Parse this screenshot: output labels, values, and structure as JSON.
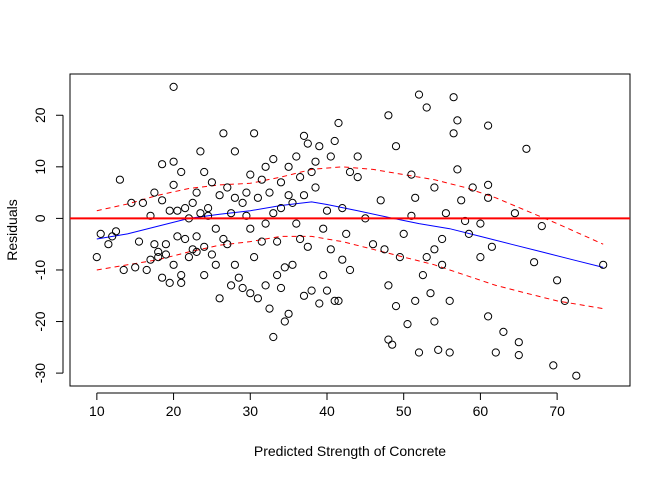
{
  "chart_data": {
    "type": "scatter",
    "title": "",
    "xlabel": "Predicted Strength of Concrete",
    "ylabel": "Residuals",
    "xlim": [
      6.5,
      79.5
    ],
    "ylim": [
      -32.5,
      28
    ],
    "x_ticks": [
      10,
      20,
      30,
      40,
      50,
      60,
      70
    ],
    "y_ticks": [
      -30,
      -20,
      -10,
      0,
      10,
      20
    ],
    "grid": false,
    "colors": {
      "points": "#000000",
      "zero_line": "#ff0000",
      "smooth": "#0000ff",
      "bands": "#ff0000"
    },
    "zero_line": {
      "y": 0
    },
    "smooth": {
      "name": "",
      "x": [
        10,
        14,
        18,
        22,
        26,
        30,
        34,
        38,
        40,
        44,
        48,
        52,
        56,
        60,
        64,
        68,
        72,
        76
      ],
      "y": [
        -4,
        -3,
        -1.5,
        0,
        0.8,
        1.5,
        2.5,
        3.2,
        2.7,
        1.5,
        0.2,
        -1,
        -2,
        -3.5,
        -5,
        -6.5,
        -8,
        -9.5
      ]
    },
    "upper_band": {
      "x": [
        10,
        14,
        18,
        22,
        26,
        30,
        34,
        38,
        42,
        46,
        50,
        54,
        58,
        62,
        66,
        70,
        76
      ],
      "y": [
        1.5,
        2.8,
        4.5,
        5.8,
        6.5,
        6.8,
        8,
        9.5,
        10,
        9.5,
        8.5,
        7.5,
        6,
        4,
        1.5,
        -1,
        -5
      ]
    },
    "lower_band": {
      "x": [
        10,
        14,
        18,
        22,
        26,
        30,
        34,
        38,
        42,
        46,
        50,
        54,
        58,
        62,
        66,
        70,
        76
      ],
      "y": [
        -10,
        -9,
        -8,
        -6.5,
        -5.2,
        -4.5,
        -3.5,
        -3.5,
        -4.5,
        -6,
        -7.5,
        -9,
        -11,
        -13,
        -14.5,
        -16,
        -17.5
      ]
    },
    "points": [
      [
        10,
        -7.5
      ],
      [
        10.5,
        -3
      ],
      [
        11.5,
        -5
      ],
      [
        12,
        -3.5
      ],
      [
        12.5,
        -2.5
      ],
      [
        13,
        7.5
      ],
      [
        13.5,
        -10
      ],
      [
        14.5,
        3
      ],
      [
        15,
        -9.5
      ],
      [
        15.5,
        -4.5
      ],
      [
        16,
        3
      ],
      [
        16.5,
        -10
      ],
      [
        17,
        0.5
      ],
      [
        17,
        -8
      ],
      [
        17.5,
        5
      ],
      [
        17.5,
        -5
      ],
      [
        18,
        -6.5
      ],
      [
        18,
        -7.5
      ],
      [
        18.5,
        10.5
      ],
      [
        18.5,
        3.5
      ],
      [
        18.5,
        -11.5
      ],
      [
        19,
        -5
      ],
      [
        19,
        -7
      ],
      [
        19.5,
        1.5
      ],
      [
        19.5,
        -12.5
      ],
      [
        20,
        11
      ],
      [
        20,
        6.5
      ],
      [
        20,
        25.5
      ],
      [
        20,
        -9
      ],
      [
        20.5,
        -3.5
      ],
      [
        20.5,
        1.5
      ],
      [
        21,
        -11
      ],
      [
        21,
        -12.5
      ],
      [
        21,
        9
      ],
      [
        21.5,
        -4
      ],
      [
        21.5,
        2
      ],
      [
        22,
        -7.5
      ],
      [
        22,
        0
      ],
      [
        22.5,
        -6
      ],
      [
        22.5,
        3
      ],
      [
        23,
        -6.5
      ],
      [
        23,
        -3.5
      ],
      [
        23,
        5
      ],
      [
        23.5,
        13
      ],
      [
        23.5,
        1
      ],
      [
        24,
        -5.5
      ],
      [
        24,
        -11
      ],
      [
        24,
        9
      ],
      [
        24.5,
        2
      ],
      [
        24.5,
        0.5
      ],
      [
        25,
        -7
      ],
      [
        25,
        7
      ],
      [
        25.5,
        -9
      ],
      [
        25.5,
        -2
      ],
      [
        26,
        -15.5
      ],
      [
        26,
        4.5
      ],
      [
        26.5,
        16.5
      ],
      [
        26.5,
        -4
      ],
      [
        27,
        6
      ],
      [
        27,
        -5
      ],
      [
        27.5,
        1
      ],
      [
        27.5,
        -13
      ],
      [
        28,
        4
      ],
      [
        28,
        -9
      ],
      [
        28,
        13
      ],
      [
        28.5,
        -11.5
      ],
      [
        29,
        3
      ],
      [
        29,
        -13.5
      ],
      [
        29.5,
        5
      ],
      [
        29.5,
        0.5
      ],
      [
        30,
        -14.5
      ],
      [
        30,
        8.5
      ],
      [
        30,
        -2
      ],
      [
        30.5,
        16.5
      ],
      [
        30.5,
        -7.5
      ],
      [
        31,
        -15.5
      ],
      [
        31,
        4
      ],
      [
        31.5,
        -4.5
      ],
      [
        31.5,
        7.5
      ],
      [
        32,
        -1
      ],
      [
        32,
        -13
      ],
      [
        32,
        10
      ],
      [
        32.5,
        -17.5
      ],
      [
        32.5,
        5
      ],
      [
        33,
        -23
      ],
      [
        33,
        11.5
      ],
      [
        33,
        1
      ],
      [
        33.5,
        -11
      ],
      [
        33.5,
        -4.5
      ],
      [
        34,
        -13.5
      ],
      [
        34,
        7
      ],
      [
        34,
        2
      ],
      [
        34.5,
        -9.5
      ],
      [
        34.5,
        -20
      ],
      [
        35,
        -18.5
      ],
      [
        35,
        10
      ],
      [
        35,
        4.5
      ],
      [
        35.5,
        -9
      ],
      [
        35.5,
        3
      ],
      [
        36,
        12
      ],
      [
        36,
        -1
      ],
      [
        36.5,
        8
      ],
      [
        36.5,
        -4
      ],
      [
        37,
        16
      ],
      [
        37,
        -15
      ],
      [
        37,
        4.5
      ],
      [
        37.5,
        14.5
      ],
      [
        37.5,
        -5.5
      ],
      [
        38,
        9
      ],
      [
        38,
        -14
      ],
      [
        38.5,
        11
      ],
      [
        38.5,
        6
      ],
      [
        39,
        -16.5
      ],
      [
        39,
        14
      ],
      [
        39.5,
        -2
      ],
      [
        39.5,
        -11
      ],
      [
        40,
        -14
      ],
      [
        40,
        1.5
      ],
      [
        40.5,
        12
      ],
      [
        40.5,
        -6
      ],
      [
        41,
        -16
      ],
      [
        41,
        15
      ],
      [
        41.5,
        18.5
      ],
      [
        41.5,
        -16
      ],
      [
        42,
        2
      ],
      [
        42,
        -8
      ],
      [
        42.5,
        -3
      ],
      [
        43,
        -10
      ],
      [
        43,
        9
      ],
      [
        44,
        8
      ],
      [
        44,
        12
      ],
      [
        45,
        0
      ],
      [
        46,
        -5
      ],
      [
        47,
        3.5
      ],
      [
        47.5,
        -6
      ],
      [
        48,
        20
      ],
      [
        48,
        -23.5
      ],
      [
        48,
        -13
      ],
      [
        48.5,
        -24.5
      ],
      [
        49,
        14
      ],
      [
        49,
        -17
      ],
      [
        49.5,
        -7.5
      ],
      [
        50,
        -3
      ],
      [
        50.5,
        -20.5
      ],
      [
        51,
        8.5
      ],
      [
        51,
        0.5
      ],
      [
        51.5,
        4
      ],
      [
        51.5,
        -16
      ],
      [
        52,
        24
      ],
      [
        52,
        -26
      ],
      [
        52.5,
        -11
      ],
      [
        53,
        -7.5
      ],
      [
        53,
        21.5
      ],
      [
        53.5,
        -14.5
      ],
      [
        54,
        6
      ],
      [
        54,
        -20
      ],
      [
        54,
        -6
      ],
      [
        54.5,
        -25.5
      ],
      [
        55,
        -9
      ],
      [
        55,
        -4
      ],
      [
        55.5,
        1
      ],
      [
        56,
        -26
      ],
      [
        56,
        -16
      ],
      [
        56.5,
        23.5
      ],
      [
        56.5,
        16.5
      ],
      [
        57,
        9.5
      ],
      [
        57,
        19
      ],
      [
        57.5,
        3.5
      ],
      [
        58,
        -0.5
      ],
      [
        58.5,
        -3
      ],
      [
        59,
        6
      ],
      [
        60,
        -7.5
      ],
      [
        60,
        -1
      ],
      [
        61,
        18
      ],
      [
        61,
        6.5
      ],
      [
        61,
        4
      ],
      [
        61,
        -19
      ],
      [
        61.5,
        -5.5
      ],
      [
        62,
        -26
      ],
      [
        63,
        -22
      ],
      [
        64.5,
        1
      ],
      [
        65,
        -24
      ],
      [
        65,
        -26.5
      ],
      [
        66,
        13.5
      ],
      [
        67,
        -8.5
      ],
      [
        68,
        -1.5
      ],
      [
        69.5,
        -28.5
      ],
      [
        70,
        -12
      ],
      [
        71,
        -16
      ],
      [
        72.5,
        -30.5
      ],
      [
        76,
        -9
      ]
    ]
  }
}
